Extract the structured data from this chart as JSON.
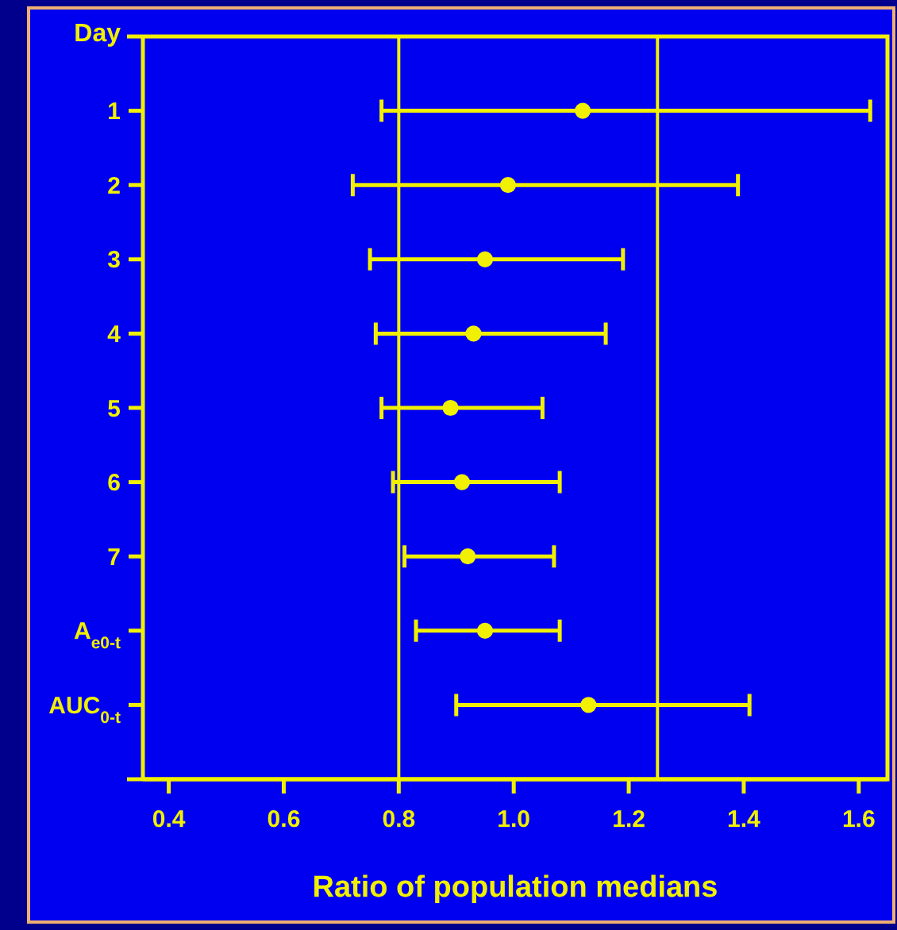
{
  "chart_data": {
    "type": "scatter",
    "orientation": "horizontal",
    "xlabel": "Ratio of population medians",
    "ylabel": "Day",
    "categories": [
      "1",
      "2",
      "3",
      "4",
      "5",
      "6",
      "7",
      "A$_{e0-t}$",
      "AUC$_{0-t}$"
    ],
    "series": [
      {
        "color": "#f0f000",
        "values": [
          1.12,
          0.99,
          0.95,
          0.93,
          0.89,
          0.91,
          0.92,
          0.95,
          1.13
        ],
        "errors": [
          [
            0.77,
            1.62
          ],
          [
            0.72,
            1.39
          ],
          [
            0.75,
            1.19
          ],
          [
            0.76,
            1.16
          ],
          [
            0.77,
            1.05
          ],
          [
            0.79,
            1.08
          ],
          [
            0.81,
            1.07
          ],
          [
            0.83,
            1.08
          ],
          [
            0.9,
            1.41
          ]
        ]
      }
    ],
    "xlim": [
      0.355,
      1.65
    ],
    "xticks": [
      0.4,
      0.6,
      0.8,
      {
        "value": 1.0,
        "label": "1.0"
      },
      1.2,
      1.4,
      1.6
    ],
    "ref_lines": [
      {
        "axis": "x",
        "value": 0.8,
        "color": "#f0f000"
      },
      {
        "axis": "x",
        "value": 1.25,
        "color": "#f0f000"
      }
    ],
    "marker": "circle",
    "grid": false
  }
}
